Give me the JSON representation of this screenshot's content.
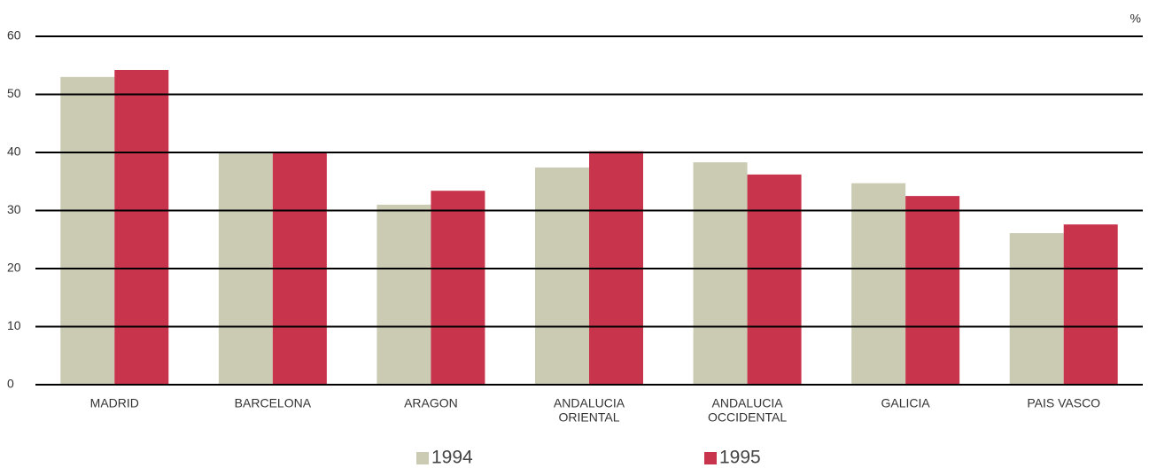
{
  "chart_data": {
    "type": "bar",
    "y_label": "%",
    "categories": [
      "MADRID",
      "BARCELONA",
      "ARAGON",
      [
        "ANDALUCIA",
        "ORIENTAL"
      ],
      [
        "ANDALUCIA",
        "OCCIDENTAL"
      ],
      "GALICIA",
      "PAIS VASCO"
    ],
    "series": [
      {
        "name": "1994",
        "color": "#cbcab2",
        "values": [
          53,
          40,
          31,
          37.4,
          38.3,
          34.7,
          26.1
        ]
      },
      {
        "name": "1995",
        "color": "#c8344c",
        "values": [
          54.2,
          40,
          33.4,
          40.2,
          36.2,
          32.5,
          27.6
        ]
      }
    ],
    "ylim": [
      0,
      60
    ],
    "yticks": [
      0,
      10,
      20,
      30,
      40,
      50,
      60
    ],
    "grid": true
  }
}
